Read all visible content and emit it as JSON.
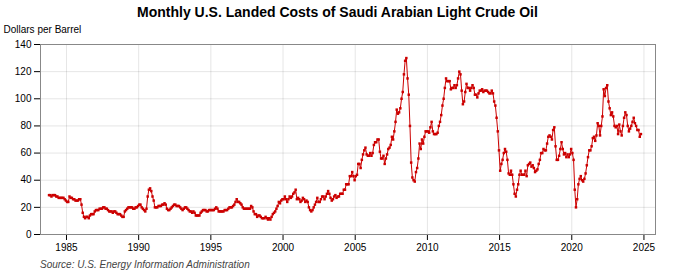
{
  "chart_data": {
    "type": "line",
    "title": "Monthly U.S. Landed Costs of Saudi Arabian Light Crude Oil",
    "ylabel": "Dollars per Barrel",
    "source": "Source: U.S. Energy Information Administration",
    "color": "#CC0000",
    "marker": "square",
    "line_style": "solid",
    "grid": true,
    "xlim": [
      1983.2,
      2025.8
    ],
    "ylim": [
      0,
      140
    ],
    "xticks": [
      1985,
      1990,
      1995,
      2000,
      2005,
      2010,
      2015,
      2020,
      2025
    ],
    "yticks": [
      0,
      20,
      40,
      60,
      80,
      100,
      120,
      140
    ],
    "x": [
      1983.7916666666667,
      1983.875,
      1983.9583333333333,
      1984.0416666666667,
      1984.125,
      1984.2083333333333,
      1984.2916666666667,
      1984.375,
      1984.4583333333333,
      1984.5416666666667,
      1984.625,
      1984.7083333333333,
      1984.7916666666667,
      1984.875,
      1984.9583333333333,
      1985.0416666666667,
      1985.125,
      1985.2083333333333,
      1985.2916666666667,
      1985.375,
      1985.4583333333333,
      1985.5416666666667,
      1985.625,
      1985.7083333333333,
      1985.7916666666667,
      1985.875,
      1985.9583333333333,
      1986.0416666666667,
      1986.125,
      1986.2083333333333,
      1986.2916666666667,
      1986.375,
      1986.4583333333333,
      1986.5416666666667,
      1986.625,
      1986.7083333333333,
      1986.7916666666667,
      1986.875,
      1986.9583333333333,
      1987.0416666666667,
      1987.125,
      1987.2083333333333,
      1987.2916666666667,
      1987.375,
      1987.4583333333333,
      1987.5416666666667,
      1987.625,
      1987.7083333333333,
      1987.7916666666667,
      1987.875,
      1987.9583333333333,
      1988.0416666666667,
      1988.125,
      1988.2083333333333,
      1988.2916666666667,
      1988.375,
      1988.4583333333333,
      1988.5416666666667,
      1988.625,
      1988.7083333333333,
      1988.7916666666667,
      1988.875,
      1988.9583333333333,
      1989.0416666666667,
      1989.125,
      1989.2083333333333,
      1989.2916666666667,
      1989.375,
      1989.4583333333333,
      1989.5416666666667,
      1989.625,
      1989.7083333333333,
      1989.7916666666667,
      1989.875,
      1989.9583333333333,
      1990.0416666666667,
      1990.125,
      1990.2083333333333,
      1990.2916666666667,
      1990.375,
      1990.4583333333333,
      1990.5416666666667,
      1990.625,
      1990.7083333333333,
      1990.7916666666667,
      1990.875,
      1990.9583333333333,
      1991.0416666666667,
      1991.125,
      1991.2083333333333,
      1991.2916666666667,
      1991.375,
      1991.4583333333333,
      1991.5416666666667,
      1991.625,
      1991.7083333333333,
      1991.7916666666667,
      1991.875,
      1991.9583333333333,
      1992.0416666666667,
      1992.125,
      1992.2083333333333,
      1992.2916666666667,
      1992.375,
      1992.4583333333333,
      1992.5416666666667,
      1992.625,
      1992.7083333333333,
      1992.7916666666667,
      1992.875,
      1992.9583333333333,
      1993.0416666666667,
      1993.125,
      1993.2083333333333,
      1993.2916666666667,
      1993.375,
      1993.4583333333333,
      1993.5416666666667,
      1993.625,
      1993.7083333333333,
      1993.7916666666667,
      1993.875,
      1993.9583333333333,
      1994.0416666666667,
      1994.125,
      1994.2083333333333,
      1994.2916666666667,
      1994.375,
      1994.4583333333333,
      1994.5416666666667,
      1994.625,
      1994.7083333333333,
      1994.7916666666667,
      1994.875,
      1994.9583333333333,
      1995.0416666666667,
      1995.125,
      1995.2083333333333,
      1995.2916666666667,
      1995.375,
      1995.4583333333333,
      1995.5416666666667,
      1995.625,
      1995.7083333333333,
      1995.7916666666667,
      1995.875,
      1995.9583333333333,
      1996.0416666666667,
      1996.125,
      1996.2083333333333,
      1996.2916666666667,
      1996.375,
      1996.4583333333333,
      1996.5416666666667,
      1996.625,
      1996.7083333333333,
      1996.7916666666667,
      1996.875,
      1996.9583333333333,
      1997.0416666666667,
      1997.125,
      1997.2083333333333,
      1997.2916666666667,
      1997.375,
      1997.4583333333333,
      1997.5416666666667,
      1997.625,
      1997.7083333333333,
      1997.7916666666667,
      1997.875,
      1997.9583333333333,
      1998.0416666666667,
      1998.125,
      1998.2083333333333,
      1998.2916666666667,
      1998.375,
      1998.4583333333333,
      1998.5416666666667,
      1998.625,
      1998.7083333333333,
      1998.7916666666667,
      1998.875,
      1998.9583333333333,
      1999.0416666666667,
      1999.125,
      1999.2083333333333,
      1999.2916666666667,
      1999.375,
      1999.4583333333333,
      1999.5416666666667,
      1999.625,
      1999.7083333333333,
      1999.7916666666667,
      1999.875,
      1999.9583333333333,
      2000.0416666666667,
      2000.125,
      2000.2083333333333,
      2000.2916666666667,
      2000.375,
      2000.4583333333333,
      2000.5416666666667,
      2000.625,
      2000.7083333333333,
      2000.7916666666667,
      2000.875,
      2000.9583333333333,
      2001.0416666666667,
      2001.125,
      2001.2083333333333,
      2001.2916666666667,
      2001.375,
      2001.4583333333333,
      2001.5416666666667,
      2001.625,
      2001.7083333333333,
      2001.7916666666667,
      2001.875,
      2001.9583333333333,
      2002.0416666666667,
      2002.125,
      2002.2083333333333,
      2002.2916666666667,
      2002.375,
      2002.4583333333333,
      2002.5416666666667,
      2002.625,
      2002.7083333333333,
      2002.7916666666667,
      2002.875,
      2002.9583333333333,
      2003.0416666666667,
      2003.125,
      2003.2083333333333,
      2003.2916666666667,
      2003.375,
      2003.4583333333333,
      2003.5416666666667,
      2003.625,
      2003.7083333333333,
      2003.7916666666667,
      2003.875,
      2003.9583333333333,
      2004.0416666666667,
      2004.125,
      2004.2083333333333,
      2004.2916666666667,
      2004.375,
      2004.4583333333333,
      2004.5416666666667,
      2004.625,
      2004.7083333333333,
      2004.7916666666667,
      2004.875,
      2004.9583333333333,
      2005.0416666666667,
      2005.125,
      2005.2083333333333,
      2005.2916666666667,
      2005.375,
      2005.4583333333333,
      2005.5416666666667,
      2005.625,
      2005.7083333333333,
      2005.7916666666667,
      2005.875,
      2005.9583333333333,
      2006.0416666666667,
      2006.125,
      2006.2083333333333,
      2006.2916666666667,
      2006.375,
      2006.4583333333333,
      2006.5416666666667,
      2006.625,
      2006.7083333333333,
      2006.7916666666667,
      2006.875,
      2006.9583333333333,
      2007.0416666666667,
      2007.125,
      2007.2083333333333,
      2007.2916666666667,
      2007.375,
      2007.4583333333333,
      2007.5416666666667,
      2007.625,
      2007.7083333333333,
      2007.7916666666667,
      2007.875,
      2007.9583333333333,
      2008.0416666666667,
      2008.125,
      2008.2083333333333,
      2008.2916666666667,
      2008.375,
      2008.4583333333333,
      2008.5416666666667,
      2008.625,
      2008.7083333333333,
      2008.7916666666667,
      2008.875,
      2008.9583333333333,
      2009.0416666666667,
      2009.125,
      2009.2083333333333,
      2009.2916666666667,
      2009.375,
      2009.4583333333333,
      2009.5416666666667,
      2009.625,
      2009.7083333333333,
      2009.7916666666667,
      2009.875,
      2009.9583333333333,
      2010.0416666666667,
      2010.125,
      2010.2083333333333,
      2010.2916666666667,
      2010.375,
      2010.4583333333333,
      2010.5416666666667,
      2010.625,
      2010.7083333333333,
      2010.7916666666667,
      2010.875,
      2010.9583333333333,
      2011.0416666666667,
      2011.125,
      2011.2083333333333,
      2011.2916666666667,
      2011.375,
      2011.4583333333333,
      2011.5416666666667,
      2011.625,
      2011.7083333333333,
      2011.7916666666667,
      2011.875,
      2011.9583333333333,
      2012.0416666666667,
      2012.125,
      2012.2083333333333,
      2012.2916666666667,
      2012.375,
      2012.4583333333333,
      2012.5416666666667,
      2012.625,
      2012.7083333333333,
      2012.7916666666667,
      2012.875,
      2012.9583333333333,
      2013.0416666666667,
      2013.125,
      2013.2083333333333,
      2013.2916666666667,
      2013.375,
      2013.4583333333333,
      2013.5416666666667,
      2013.625,
      2013.7083333333333,
      2013.7916666666667,
      2013.875,
      2013.9583333333333,
      2014.0416666666667,
      2014.125,
      2014.2083333333333,
      2014.2916666666667,
      2014.375,
      2014.4583333333333,
      2014.5416666666667,
      2014.625,
      2014.7083333333333,
      2014.7916666666667,
      2014.875,
      2014.9583333333333,
      2015.0416666666667,
      2015.125,
      2015.2083333333333,
      2015.2916666666667,
      2015.375,
      2015.4583333333333,
      2015.5416666666667,
      2015.625,
      2015.7083333333333,
      2015.7916666666667,
      2015.875,
      2015.9583333333333,
      2016.0416666666667,
      2016.125,
      2016.2083333333333,
      2016.2916666666667,
      2016.375,
      2016.4583333333333,
      2016.5416666666667,
      2016.625,
      2016.7083333333333,
      2016.7916666666667,
      2016.875,
      2016.9583333333333,
      2017.0416666666667,
      2017.125,
      2017.2083333333333,
      2017.2916666666667,
      2017.375,
      2017.4583333333333,
      2017.5416666666667,
      2017.625,
      2017.7083333333333,
      2017.7916666666667,
      2017.875,
      2017.9583333333333,
      2018.0416666666667,
      2018.125,
      2018.2083333333333,
      2018.2916666666667,
      2018.375,
      2018.4583333333333,
      2018.5416666666667,
      2018.625,
      2018.7083333333333,
      2018.7916666666667,
      2018.875,
      2018.9583333333333,
      2019.0416666666667,
      2019.125,
      2019.2083333333333,
      2019.2916666666667,
      2019.375,
      2019.4583333333333,
      2019.5416666666667,
      2019.625,
      2019.7083333333333,
      2019.7916666666667,
      2019.875,
      2019.9583333333333,
      2020.0416666666667,
      2020.125,
      2020.2083333333333,
      2020.2916666666667,
      2020.375,
      2020.4583333333333,
      2020.5416666666667,
      2020.625,
      2020.7083333333333,
      2020.7916666666667,
      2020.875,
      2020.9583333333333,
      2021.0416666666667,
      2021.125,
      2021.2083333333333,
      2021.2916666666667,
      2021.375,
      2021.4583333333333,
      2021.5416666666667,
      2021.625,
      2021.7083333333333,
      2021.7916666666667,
      2021.875,
      2021.9583333333333,
      2022.0416666666667,
      2022.125,
      2022.2083333333333,
      2022.2916666666667,
      2022.375,
      2022.4583333333333,
      2022.5416666666667,
      2022.625,
      2022.7083333333333,
      2022.7916666666667,
      2022.875,
      2022.9583333333333,
      2023.0416666666667,
      2023.125,
      2023.2083333333333,
      2023.2916666666667,
      2023.375,
      2023.4583333333333,
      2023.5416666666667,
      2023.625,
      2023.7083333333333,
      2023.7916666666667,
      2023.875,
      2023.9583333333333,
      2024.0416666666667,
      2024.125,
      2024.2083333333333,
      2024.2916666666667,
      2024.375,
      2024.4583333333333,
      2024.5416666666667,
      2024.625,
      2024.7083333333333,
      2024.7916666666667
    ],
    "values": [
      29,
      29,
      28,
      29,
      29,
      29,
      28,
      28,
      27,
      27,
      27,
      27,
      27,
      26,
      25,
      24,
      24,
      28,
      27,
      27,
      26,
      26,
      25,
      25,
      25,
      26,
      26,
      22,
      16,
      13,
      12,
      13,
      13,
      12,
      14,
      15,
      15,
      15,
      17,
      18,
      18,
      18,
      19,
      19,
      19,
      20,
      20,
      19,
      19,
      18,
      17,
      17,
      17,
      16,
      17,
      17,
      16,
      15,
      15,
      15,
      14,
      13,
      13,
      17,
      18,
      19,
      20,
      20,
      20,
      20,
      19,
      19,
      20,
      20,
      21,
      22,
      22,
      20,
      19,
      18,
      17,
      19,
      28,
      33,
      34,
      32,
      28,
      25,
      20,
      20,
      20,
      21,
      21,
      21,
      22,
      22,
      23,
      22,
      19,
      18,
      18,
      19,
      20,
      21,
      22,
      22,
      21,
      21,
      21,
      20,
      19,
      18,
      19,
      20,
      20,
      19,
      18,
      17,
      17,
      16,
      17,
      16,
      14,
      14,
      14,
      14,
      16,
      17,
      18,
      18,
      18,
      17,
      17,
      18,
      18,
      18,
      18,
      18,
      19,
      20,
      19,
      17,
      17,
      17,
      17,
      17,
      18,
      18,
      18,
      19,
      20,
      20,
      20,
      21,
      22,
      24,
      26,
      24,
      24,
      23,
      22,
      20,
      19,
      19,
      19,
      19,
      19,
      19,
      21,
      20,
      17,
      15,
      15,
      13,
      14,
      14,
      13,
      12,
      12,
      12,
      13,
      12,
      11,
      12,
      11,
      13,
      15,
      16,
      17,
      19,
      21,
      24,
      23,
      25,
      26,
      26,
      28,
      26,
      24,
      26,
      28,
      27,
      28,
      30,
      31,
      33,
      26,
      27,
      26,
      24,
      25,
      27,
      26,
      24,
      25,
      24,
      20,
      18,
      17,
      18,
      20,
      22,
      24,
      27,
      24,
      24,
      26,
      28,
      28,
      26,
      28,
      30,
      32,
      30,
      27,
      25,
      26,
      28,
      29,
      27,
      28,
      28,
      30,
      30,
      30,
      33,
      33,
      37,
      37,
      37,
      43,
      43,
      46,
      43,
      40,
      43,
      44,
      52,
      52,
      49,
      55,
      59,
      62,
      64,
      59,
      58,
      58,
      60,
      58,
      60,
      66,
      68,
      68,
      70,
      70,
      61,
      56,
      56,
      58,
      52,
      56,
      59,
      63,
      64,
      66,
      72,
      70,
      76,
      83,
      92,
      89,
      90,
      93,
      100,
      105,
      118,
      128,
      130,
      115,
      103,
      80,
      53,
      42,
      40,
      39,
      46,
      49,
      56,
      67,
      63,
      70,
      67,
      72,
      76,
      76,
      76,
      75,
      79,
      83,
      76,
      74,
      74,
      74,
      75,
      80,
      83,
      88,
      95,
      100,
      108,
      115,
      113,
      113,
      113,
      107,
      108,
      108,
      110,
      108,
      110,
      115,
      120,
      118,
      106,
      96,
      98,
      105,
      111,
      108,
      108,
      106,
      108,
      110,
      108,
      103,
      103,
      101,
      104,
      106,
      106,
      107,
      105,
      106,
      106,
      106,
      105,
      104,
      104,
      106,
      104,
      98,
      95,
      86,
      76,
      62,
      47,
      52,
      55,
      60,
      63,
      61,
      55,
      45,
      44,
      47,
      44,
      37,
      30,
      28,
      33,
      37,
      44,
      47,
      44,
      44,
      44,
      47,
      43,
      51,
      52,
      53,
      50,
      51,
      49,
      46,
      47,
      48,
      52,
      55,
      60,
      60,
      63,
      62,
      62,
      67,
      72,
      73,
      72,
      70,
      77,
      79,
      65,
      55,
      55,
      58,
      63,
      68,
      63,
      59,
      60,
      57,
      59,
      57,
      59,
      63,
      60,
      55,
      33,
      20,
      26,
      37,
      41,
      43,
      40,
      39,
      41,
      45,
      51,
      57,
      62,
      62,
      65,
      71,
      72,
      69,
      73,
      82,
      80,
      73,
      80,
      87,
      107,
      102,
      108,
      110,
      98,
      93,
      88,
      90,
      87,
      80,
      79,
      80,
      74,
      81,
      76,
      73,
      80,
      86,
      90,
      88,
      80,
      76,
      78,
      80,
      83,
      86,
      82,
      80,
      77,
      77,
      72,
      74
    ]
  }
}
